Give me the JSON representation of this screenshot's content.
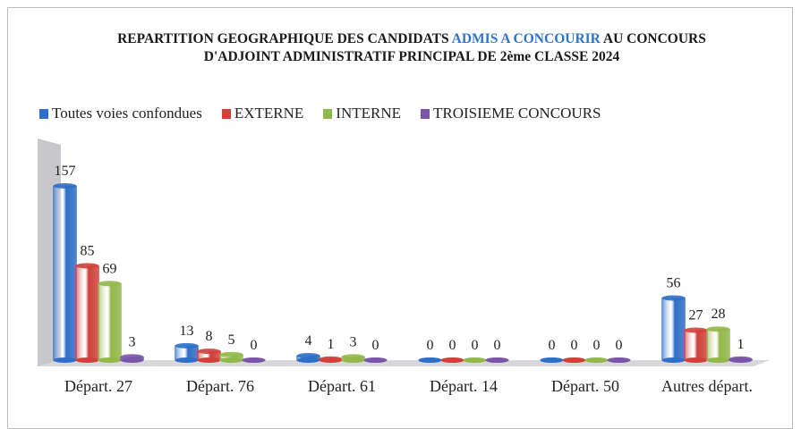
{
  "chart_data": {
    "type": "bar",
    "title_parts": [
      "REPARTITION GEOGRAPHIQUE DES CANDIDATS",
      "ADMIS A CONCOURIR",
      "AU CONCOURS D'ADJOINT ADMINISTRATIF PRINCIPAL DE 2ème CLASSE 2024"
    ],
    "title_colors": [
      "#1a1a1a",
      "#2e74c8",
      "#1a1a1a"
    ],
    "categories": [
      "Départ. 27",
      "Départ. 76",
      "Départ. 61",
      "Départ. 14",
      "Départ. 50",
      "Autres départ."
    ],
    "series": [
      {
        "name": "Toutes voies confondues",
        "color": "#2f6fc7",
        "values": [
          157,
          13,
          4,
          0,
          0,
          56
        ]
      },
      {
        "name": "EXTERNE",
        "color": "#d0413c",
        "values": [
          85,
          8,
          1,
          0,
          0,
          27
        ]
      },
      {
        "name": "INTERNE",
        "color": "#93b84a",
        "values": [
          69,
          5,
          3,
          0,
          0,
          28
        ]
      },
      {
        "name": "TROISIEME CONCOURS",
        "color": "#7a56a8",
        "values": [
          3,
          0,
          0,
          0,
          0,
          1
        ]
      }
    ],
    "legend": "top"
  }
}
